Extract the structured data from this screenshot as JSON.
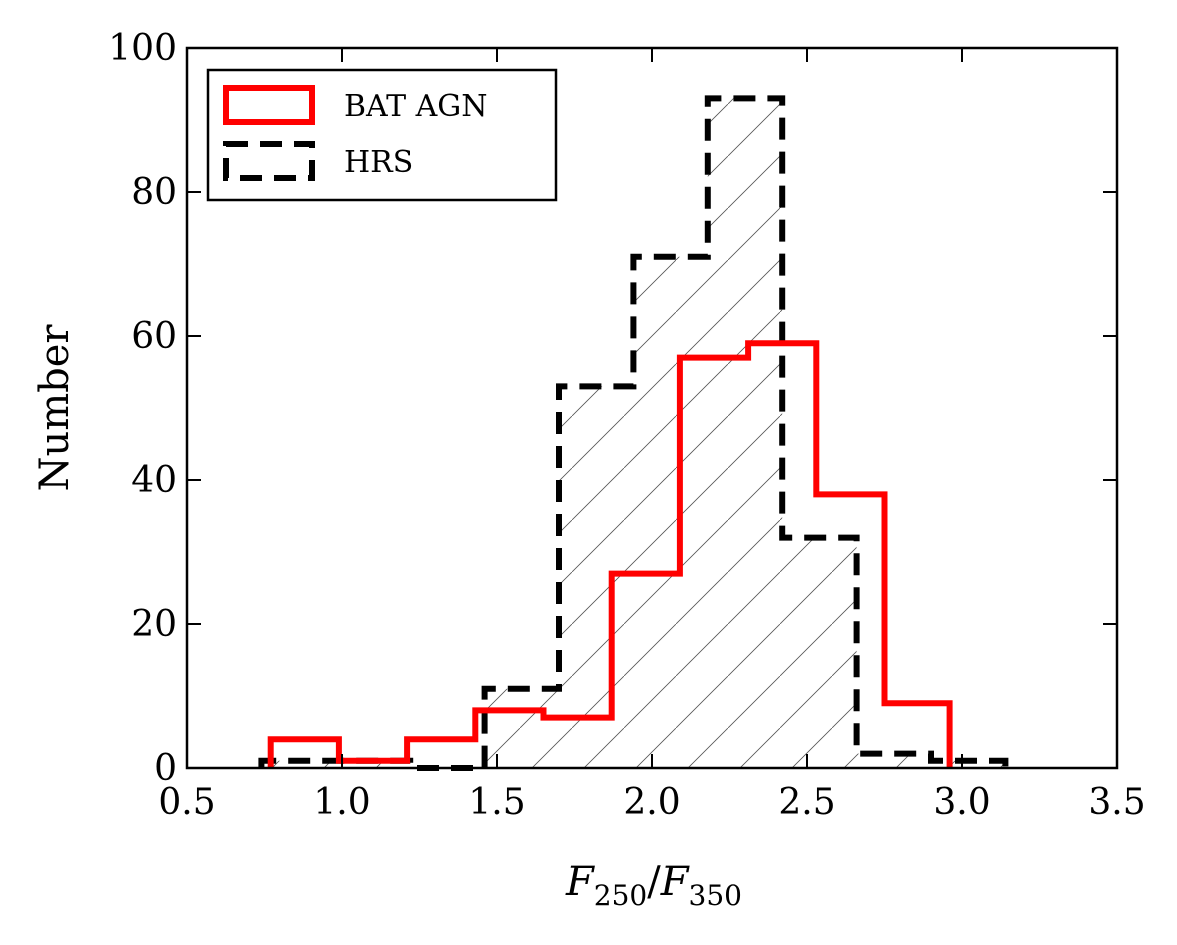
{
  "chart_data": {
    "type": "histogram",
    "xlabel": "F250/F350",
    "xlabel_parts": {
      "base1": "F",
      "sub1": "250",
      "slash": "/",
      "base2": "F",
      "sub2": "350"
    },
    "ylabel": "Number",
    "xlim": [
      0.5,
      3.5
    ],
    "ylim": [
      0,
      100
    ],
    "xticks": [
      "0.5",
      "1.0",
      "1.5",
      "2.0",
      "2.5",
      "3.0",
      "3.5"
    ],
    "xtick_values": [
      0.5,
      1.0,
      1.5,
      2.0,
      2.5,
      3.0,
      3.5
    ],
    "yticks": [
      "0",
      "20",
      "40",
      "60",
      "80",
      "100"
    ],
    "ytick_values": [
      0,
      20,
      40,
      60,
      80,
      100
    ],
    "grid": false,
    "legend": {
      "position": "top-left"
    },
    "series": [
      {
        "name": "BAT AGN",
        "style": "solid",
        "color": "#ff0000",
        "bin_edges": [
          0.77,
          0.99,
          1.21,
          1.43,
          1.65,
          1.87,
          2.09,
          2.31,
          2.53,
          2.75,
          2.96
        ],
        "counts": [
          4,
          1,
          4,
          8,
          7,
          27,
          57,
          59,
          38,
          9
        ]
      },
      {
        "name": "HRS",
        "style": "dashed",
        "color": "#000000",
        "hatch": true,
        "bin_edges": [
          0.74,
          0.98,
          1.22,
          1.46,
          1.7,
          1.94,
          2.18,
          2.42,
          2.66,
          2.9,
          3.14
        ],
        "counts": [
          1,
          1,
          0,
          11,
          53,
          71,
          93,
          32,
          2,
          1
        ]
      }
    ]
  }
}
